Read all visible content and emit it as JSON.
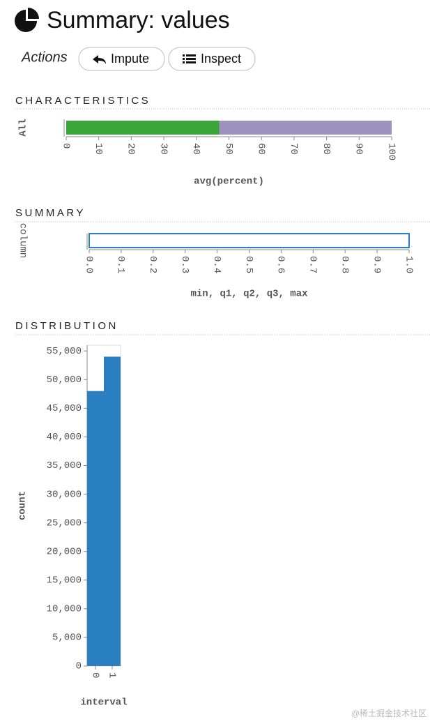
{
  "header": {
    "title": "Summary: values"
  },
  "actions": {
    "label": "Actions",
    "buttons": [
      "Impute",
      "Inspect"
    ]
  },
  "chart_data": [
    {
      "type": "stacked_bar",
      "title": "CHARACTERISTICS",
      "categories": [
        "All"
      ],
      "series": [
        {
          "color": "#3aa63a",
          "values": [
            47
          ]
        },
        {
          "color": "#9e92be",
          "values": [
            53
          ]
        }
      ],
      "xlim": [
        0,
        100
      ],
      "xticks": [
        0,
        10,
        20,
        30,
        40,
        50,
        60,
        70,
        80,
        90,
        100
      ],
      "x_label": "avg(percent)"
    },
    {
      "type": "box",
      "title": "SUMMARY",
      "categories": [
        "column"
      ],
      "color": "#2a7fc0",
      "min": [
        0
      ],
      "q1": [
        0
      ],
      "median": [
        1
      ],
      "q3": [
        1
      ],
      "max": [
        1
      ],
      "xlim": [
        0,
        1
      ],
      "xticks": [
        {
          "value": 0,
          "label": "0.0"
        },
        {
          "value": 0.1,
          "label": "0.1"
        },
        {
          "value": 0.2,
          "label": "0.2"
        },
        {
          "value": 0.3,
          "label": "0.3"
        },
        {
          "value": 0.4,
          "label": "0.4"
        },
        {
          "value": 0.5,
          "label": "0.5"
        },
        {
          "value": 0.6,
          "label": "0.6"
        },
        {
          "value": 0.7,
          "label": "0.7"
        },
        {
          "value": 0.8,
          "label": "0.8"
        },
        {
          "value": 0.9,
          "label": "0.9"
        },
        {
          "value": 1,
          "label": "1.0"
        }
      ],
      "x_label": "min, q1, q2, q3, max"
    },
    {
      "type": "bar",
      "title": "DISTRIBUTION",
      "categories": [
        "0",
        "1"
      ],
      "values": [
        48000,
        54000
      ],
      "color": "#2a7fc0",
      "ylim": [
        0,
        56000
      ],
      "yticks": [
        0,
        {
          "value": 5000,
          "label": "5,000"
        },
        {
          "value": 10000,
          "label": "10,000"
        },
        {
          "value": 15000,
          "label": "15,000"
        },
        {
          "value": 20000,
          "label": "20,000"
        },
        {
          "value": 25000,
          "label": "25,000"
        },
        {
          "value": 30000,
          "label": "30,000"
        },
        {
          "value": 35000,
          "label": "35,000"
        },
        {
          "value": 40000,
          "label": "40,000"
        },
        {
          "value": 45000,
          "label": "45,000"
        },
        {
          "value": 50000,
          "label": "50,000"
        },
        {
          "value": 55000,
          "label": "55,000"
        }
      ],
      "x_label": "interval",
      "y_label": "count"
    }
  ],
  "watermark": "@稀土掘金技术社区"
}
